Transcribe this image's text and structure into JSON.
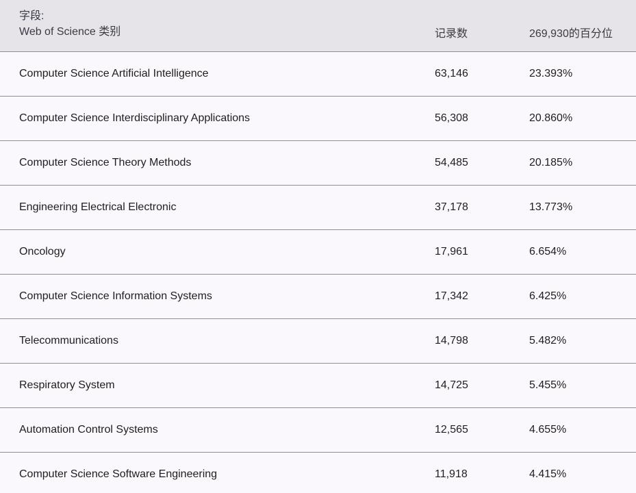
{
  "header": {
    "field_label_line1": "字段:",
    "field_label_line2": "Web of Science 类别",
    "count_label": "记录数",
    "percent_label": "269,930的百分位"
  },
  "rows": [
    {
      "category": "Computer Science Artificial Intelligence",
      "count": "63,146",
      "percent": "23.393%"
    },
    {
      "category": "Computer Science Interdisciplinary Applications",
      "count": "56,308",
      "percent": "20.860%"
    },
    {
      "category": "Computer Science Theory Methods",
      "count": "54,485",
      "percent": "20.185%"
    },
    {
      "category": "Engineering Electrical Electronic",
      "count": "37,178",
      "percent": "13.773%"
    },
    {
      "category": "Oncology",
      "count": "17,961",
      "percent": "6.654%"
    },
    {
      "category": "Computer Science Information Systems",
      "count": "17,342",
      "percent": "6.425%"
    },
    {
      "category": "Telecommunications",
      "count": "14,798",
      "percent": "5.482%"
    },
    {
      "category": "Respiratory System",
      "count": "14,725",
      "percent": "5.455%"
    },
    {
      "category": "Automation Control Systems",
      "count": "12,565",
      "percent": "4.655%"
    },
    {
      "category": "Computer Science Software Engineering",
      "count": "11,918",
      "percent": "4.415%"
    }
  ]
}
